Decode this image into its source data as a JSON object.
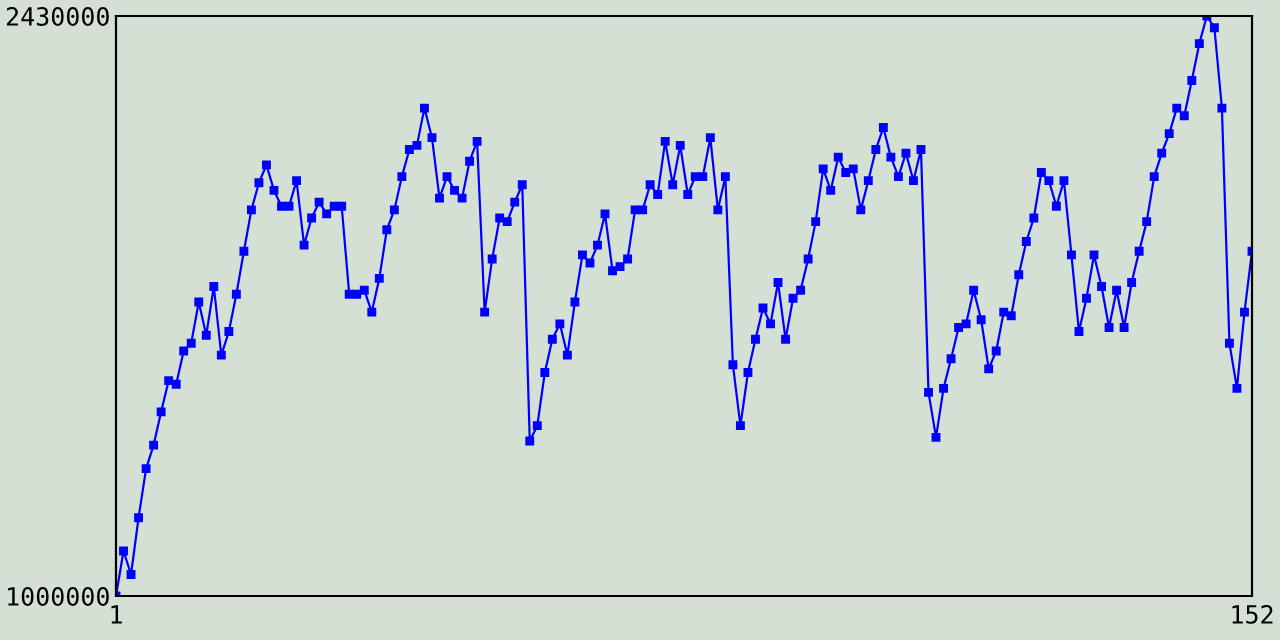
{
  "chart_data": {
    "type": "line",
    "x": [
      1,
      2,
      3,
      4,
      5,
      6,
      7,
      8,
      9,
      10,
      11,
      12,
      13,
      14,
      15,
      16,
      17,
      18,
      19,
      20,
      21,
      22,
      23,
      24,
      25,
      26,
      27,
      28,
      29,
      30,
      31,
      32,
      33,
      34,
      35,
      36,
      37,
      38,
      39,
      40,
      41,
      42,
      43,
      44,
      45,
      46,
      47,
      48,
      49,
      50,
      51,
      52,
      53,
      54,
      55,
      56,
      57,
      58,
      59,
      60,
      61,
      62,
      63,
      64,
      65,
      66,
      67,
      68,
      69,
      70,
      71,
      72,
      73,
      74,
      75,
      76,
      77,
      78,
      79,
      80,
      81,
      82,
      83,
      84,
      85,
      86,
      87,
      88,
      89,
      90,
      91,
      92,
      93,
      94,
      95,
      96,
      97,
      98,
      99,
      100,
      101,
      102,
      103,
      104,
      105,
      106,
      107,
      108,
      109,
      110,
      111,
      112,
      113,
      114,
      115,
      116,
      117,
      118,
      119,
      120,
      121,
      122,
      123,
      124,
      125,
      126,
      127,
      128,
      129,
      130,
      131,
      132,
      133,
      134,
      135,
      136,
      137,
      138,
      139,
      140,
      141,
      142,
      143,
      144,
      145,
      146,
      147,
      148,
      149,
      150,
      151,
      152
    ],
    "values": [
      1000000,
      1111000,
      1053000,
      1193000,
      1314000,
      1372000,
      1454000,
      1531000,
      1522000,
      1604000,
      1623000,
      1725000,
      1643000,
      1763000,
      1594000,
      1652000,
      1744000,
      1850000,
      1952000,
      2019000,
      2063000,
      2000000,
      1961000,
      1961000,
      2024000,
      1865000,
      1932000,
      1971000,
      1942000,
      1961000,
      1961000,
      1744000,
      1744000,
      1754000,
      1700000,
      1783000,
      1903000,
      1952000,
      2034000,
      2101000,
      2111000,
      2203000,
      2130000,
      1981000,
      2034000,
      2000000,
      1981000,
      2072000,
      2121000,
      1700000,
      1831000,
      1932000,
      1923000,
      1971000,
      2014000,
      1382000,
      1420000,
      1551000,
      1633000,
      1671000,
      1594000,
      1725000,
      1841000,
      1821000,
      1865000,
      1942000,
      1802000,
      1812000,
      1831000,
      1952000,
      1952000,
      2014000,
      1990000,
      2121000,
      2014000,
      2111000,
      1990000,
      2034000,
      2034000,
      2130000,
      1952000,
      2034000,
      1570000,
      1420000,
      1551000,
      1633000,
      1710000,
      1671000,
      1773000,
      1633000,
      1734000,
      1754000,
      1831000,
      1923000,
      2053000,
      2000000,
      2082000,
      2044000,
      2053000,
      1952000,
      2024000,
      2101000,
      2155000,
      2082000,
      2034000,
      2092000,
      2024000,
      2101000,
      1502000,
      1391000,
      1512000,
      1585000,
      1662000,
      1671000,
      1754000,
      1681000,
      1560000,
      1604000,
      1700000,
      1691000,
      1792000,
      1874000,
      1932000,
      2044000,
      2024000,
      1961000,
      2024000,
      1841000,
      1652000,
      1734000,
      1841000,
      1763000,
      1662000,
      1754000,
      1662000,
      1773000,
      1850000,
      1923000,
      2034000,
      2092000,
      2140000,
      2203000,
      2184000,
      2271000,
      2362000,
      2430000,
      2401000,
      2203000,
      1623000,
      1512000,
      1700000,
      1850000
    ],
    "color": "#0000ff",
    "marker": "square",
    "xlim": [
      1,
      152
    ],
    "ylim": [
      1000000,
      2430000
    ],
    "xticks": [
      1,
      152
    ],
    "yticks": [
      1000000,
      2430000
    ]
  }
}
